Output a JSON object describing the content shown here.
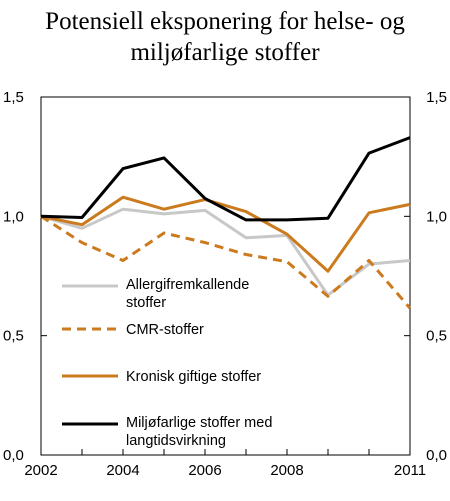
{
  "chart_data": {
    "type": "line",
    "title_lines": [
      "Potensiell eksponering for helse- og",
      "miljøfarlige stoffer"
    ],
    "x": [
      2002,
      2003,
      2004,
      2005,
      2006,
      2007,
      2008,
      2009,
      2010,
      2011
    ],
    "x_ticks": [
      "2002",
      "2004",
      "2006",
      "2008",
      "2011"
    ],
    "x_tick_values": [
      2002,
      2004,
      2006,
      2008,
      2011
    ],
    "y_ticks": [
      "0,0",
      "0,5",
      "1,0",
      "1,5"
    ],
    "y_tick_values": [
      0,
      0.5,
      1.0,
      1.5
    ],
    "xlim": [
      2002,
      2011
    ],
    "ylim": [
      0,
      1.5
    ],
    "grid": false,
    "legend_position": "left-bottom inside plot",
    "series": [
      {
        "name": "Allergifremkallende stoffer",
        "name_lines": [
          "Allergifremkallende",
          "stoffer"
        ],
        "color": "#c8c8c8",
        "dash": false,
        "values": [
          1.0,
          0.95,
          1.03,
          1.01,
          1.025,
          0.91,
          0.92,
          0.67,
          0.8,
          0.815
        ]
      },
      {
        "name": "CMR-stoffer",
        "name_lines": [
          "CMR-stoffer"
        ],
        "color": "#cc7a1e",
        "dash": true,
        "values": [
          1.0,
          0.89,
          0.815,
          0.93,
          0.89,
          0.84,
          0.81,
          0.665,
          0.815,
          0.615
        ]
      },
      {
        "name": "Kronisk giftige stoffer",
        "name_lines": [
          "Kronisk giftige stoffer"
        ],
        "color": "#cc7a1e",
        "dash": false,
        "values": [
          1.0,
          0.965,
          1.08,
          1.03,
          1.07,
          1.02,
          0.925,
          0.77,
          1.015,
          1.05
        ]
      },
      {
        "name": "Miljøfarlige stoffer med langtidsvirkning",
        "name_lines": [
          "Miljøfarlige stoffer med",
          "langtidsvirkning"
        ],
        "color": "#000000",
        "dash": false,
        "values": [
          1.0,
          0.995,
          1.2,
          1.245,
          1.075,
          0.985,
          0.985,
          0.992,
          1.265,
          1.33
        ]
      }
    ]
  }
}
